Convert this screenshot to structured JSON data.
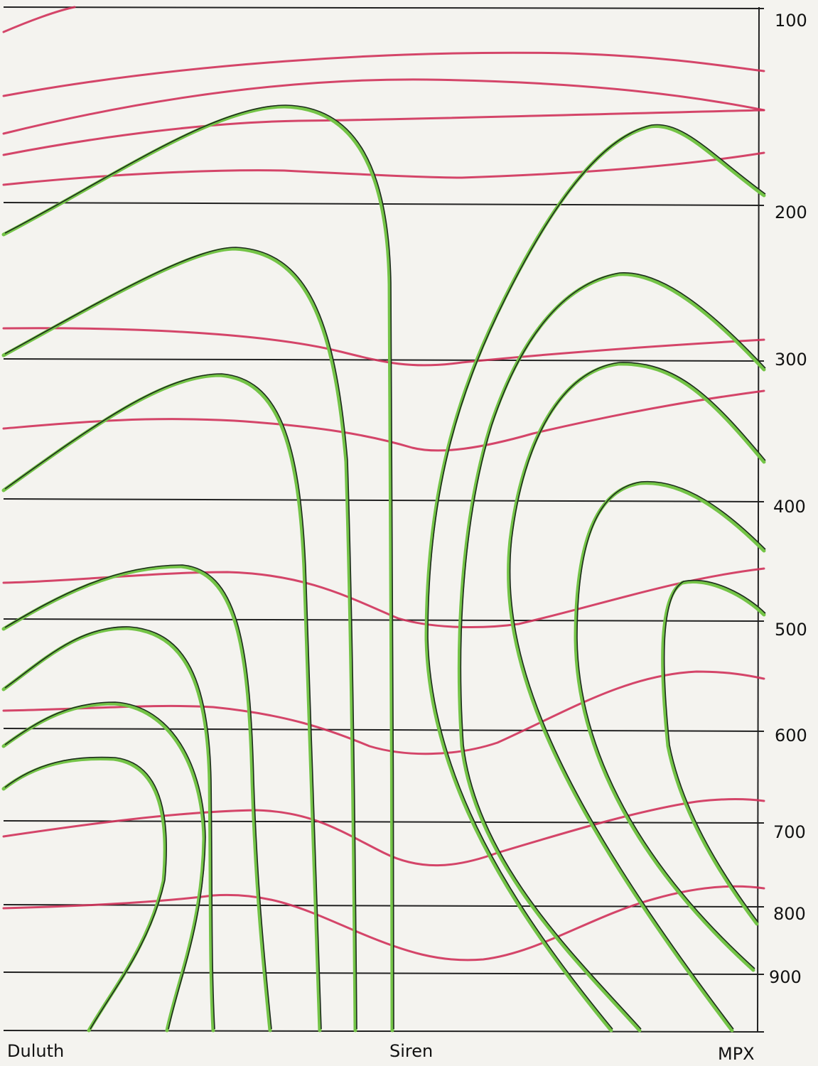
{
  "pressure_levels": [
    "100",
    "200",
    "300",
    "400",
    "500",
    "600",
    "700",
    "800",
    "900"
  ],
  "stations": [
    "Duluth",
    "Siren",
    "MPX"
  ]
}
